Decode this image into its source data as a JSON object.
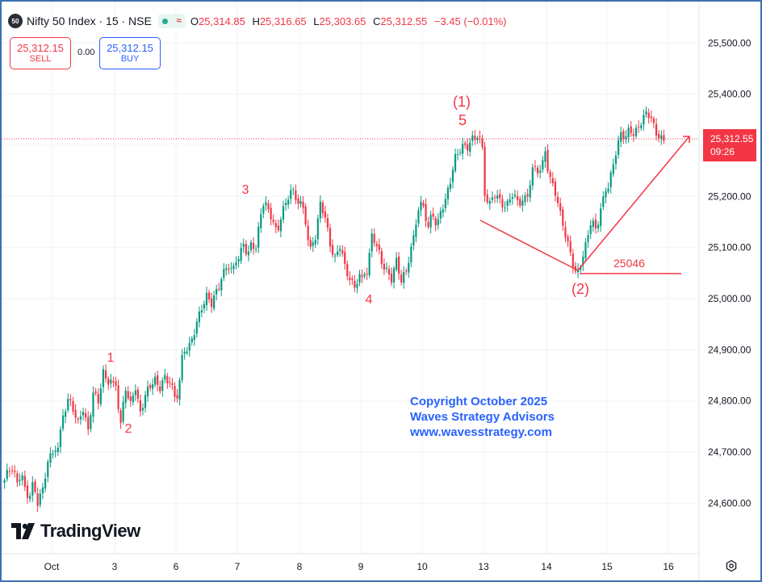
{
  "header": {
    "symbol_badge": "50",
    "title": "Nifty 50 Index · 15 · NSE",
    "status_wave": "≈",
    "ohlc": [
      {
        "key": "O",
        "value": "25,314.85"
      },
      {
        "key": "H",
        "value": "25,316.65"
      },
      {
        "key": "L",
        "value": "25,303.65"
      },
      {
        "key": "C",
        "value": "25,312.55"
      }
    ],
    "change": "−3.45 (−0.01%)"
  },
  "trade": {
    "sell_price": "25,312.15",
    "sell_label": "SELL",
    "spread": "0.00",
    "buy_price": "25,312.15",
    "buy_label": "BUY"
  },
  "price_tag": {
    "price": "25,312.55",
    "countdown": "09:26"
  },
  "copyright": {
    "line1": "Copyright October 2025",
    "line2": "Waves Strategy Advisors",
    "line3": "www.wavesstrategy.com"
  },
  "brand": {
    "name": "TradingView",
    "icon": "tradingview-logo-icon"
  },
  "settings_icon": "gear-icon",
  "colors": {
    "up": "#089981",
    "down": "#f23645",
    "annotation": "#f23645",
    "text_blue": "#2962ff",
    "frame": "#3d70b2"
  },
  "chart_data": {
    "type": "candlestick",
    "title": "Nifty 50 Index · 15 · NSE",
    "ylim": [
      24560,
      25560
    ],
    "y_ticks": [
      24600,
      24700,
      24800,
      24900,
      25000,
      25100,
      25200,
      25300,
      25400,
      25500
    ],
    "y_tick_labels": [
      "24,600.00",
      "24,700.00",
      "24,800.00",
      "24,900.00",
      "25,000.00",
      "25,100.00",
      "25,200.00",
      "25,300.00",
      "25,400.00",
      "25,500.00"
    ],
    "x_tick_labels": [
      "Oct",
      "3",
      "6",
      "7",
      "8",
      "9",
      "10",
      "13",
      "14",
      "15",
      "16"
    ],
    "grid": true,
    "last_price": 25312.55,
    "series": [
      {
        "session": "Oct",
        "points": [
          24640,
          24665,
          24670,
          24645,
          24660,
          24620,
          24605,
          24645,
          24600,
          24630,
          24660,
          24690
        ]
      },
      {
        "session": "1",
        "points": [
          24690,
          24720,
          24770,
          24800,
          24780,
          24760,
          24790,
          24740,
          24810,
          24800,
          24860,
          24840,
          24830
        ]
      },
      {
        "session": "3",
        "points": [
          24830,
          24760,
          24820,
          24790,
          24830,
          24780,
          24810,
          24825,
          24840,
          24830,
          24850,
          24830,
          24810
        ]
      },
      {
        "session": "6",
        "points": [
          24810,
          24880,
          24900,
          24920,
          24960,
          24980,
          25000,
          24990,
          25020,
          25040,
          25060,
          25050,
          25080
        ]
      },
      {
        "session": "7",
        "points": [
          25080,
          25100,
          25090,
          25110,
          25100,
          25150,
          25190,
          25170,
          25160,
          25130,
          25160,
          25180,
          25205,
          25215,
          25190
        ]
      },
      {
        "session": "8",
        "points": [
          25190,
          25150,
          25100,
          25120,
          25180,
          25160,
          25110,
          25080,
          25100,
          25060,
          25040,
          25030,
          25040
        ]
      },
      {
        "session": "9",
        "points": [
          25040,
          25060,
          25120,
          25100,
          25070,
          25060,
          25040,
          25070,
          25030,
          25060,
          25100,
          25150,
          25180
        ]
      },
      {
        "session": "10",
        "points": [
          25180,
          25140,
          25160,
          25140,
          25180,
          25200,
          25230,
          25270,
          25290,
          25305,
          25300,
          25315,
          25310,
          25300
        ]
      },
      {
        "session": "13",
        "points": [
          25200,
          25180,
          25210,
          25190,
          25180,
          25200,
          25190,
          25195,
          25210,
          25260,
          25240,
          25300
        ]
      },
      {
        "session": "14",
        "points": [
          25250,
          25220,
          25200,
          25150,
          25110,
          25070,
          25046,
          25080,
          25110,
          25150,
          25130,
          25180,
          25220
        ]
      },
      {
        "session": "15",
        "points": [
          25220,
          25260,
          25300,
          25320,
          25310,
          25330,
          25325,
          25340,
          25350,
          25360,
          25350,
          25330,
          25320,
          25312
        ]
      }
    ],
    "annotations": {
      "wave_labels": [
        {
          "text": "1",
          "session": "1"
        },
        {
          "text": "2",
          "session": "3"
        },
        {
          "text": "3",
          "session": "7"
        },
        {
          "text": "4",
          "session": "9"
        },
        {
          "text": "5",
          "session": "10"
        },
        {
          "text": "(1)",
          "session": "10"
        },
        {
          "text": "(2)",
          "session": "14"
        }
      ],
      "level_label": "25046",
      "level_value": 25046
    }
  }
}
